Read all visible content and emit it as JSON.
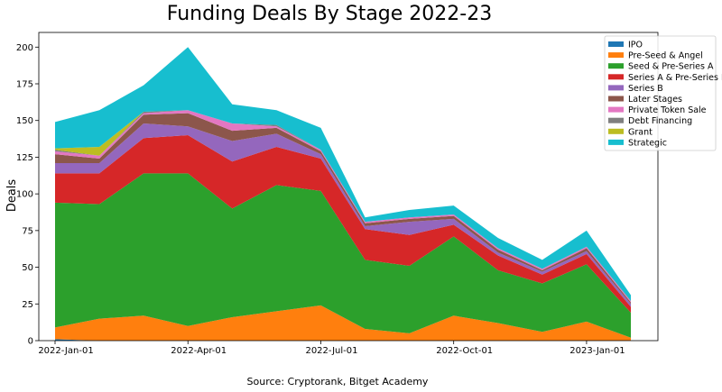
{
  "chart_data": {
    "type": "area",
    "stacked": true,
    "title": "Funding Deals By Stage 2022-23",
    "xlabel": "",
    "ylabel": "Deals",
    "source": "Source: Cryptorank, Bitget Academy",
    "x": [
      "2022-01",
      "2022-02",
      "2022-03",
      "2022-04",
      "2022-05",
      "2022-06",
      "2022-07",
      "2022-08",
      "2022-09",
      "2022-10",
      "2022-11",
      "2022-12",
      "2023-01",
      "2023-02"
    ],
    "xticks": [
      "2022-Jan-01",
      "2022-Apr-01",
      "2022-Jul-01",
      "2022-Oct-01",
      "2023-Jan-01"
    ],
    "xtick_index": [
      0,
      3,
      6,
      9,
      12
    ],
    "ylim": [
      0,
      210
    ],
    "yticks": [
      0,
      25,
      50,
      75,
      100,
      125,
      150,
      175,
      200
    ],
    "legend_position": "top-right",
    "series": [
      {
        "name": "IPO",
        "color": "#1f77b4",
        "values": [
          1,
          0,
          0,
          0,
          0,
          0,
          0,
          0,
          0,
          0,
          0,
          0,
          0,
          0
        ]
      },
      {
        "name": "Pre-Seed & Angel",
        "color": "#ff7f0e",
        "values": [
          8,
          15,
          17,
          10,
          16,
          20,
          24,
          8,
          5,
          17,
          12,
          6,
          13,
          2
        ]
      },
      {
        "name": "Seed & Pre-Series A",
        "color": "#2ca02c",
        "values": [
          85,
          78,
          97,
          104,
          74,
          86,
          78,
          47,
          46,
          54,
          36,
          33,
          39,
          17
        ]
      },
      {
        "name": "Series A & Pre-Series B",
        "color": "#d62728",
        "values": [
          20,
          21,
          24,
          26,
          32,
          26,
          22,
          21,
          21,
          8,
          10,
          6,
          7,
          4
        ]
      },
      {
        "name": "Series B",
        "color": "#9467bd",
        "values": [
          7,
          7,
          10,
          6,
          14,
          9,
          3,
          2,
          9,
          4,
          2,
          2,
          2,
          2
        ]
      },
      {
        "name": "Later Stages",
        "color": "#8c564b",
        "values": [
          6,
          3,
          6,
          9,
          7,
          4,
          2,
          2,
          2,
          2,
          2,
          1,
          2,
          1
        ]
      },
      {
        "name": "Private Token Sale",
        "color": "#e377c2",
        "values": [
          2,
          2,
          1,
          2,
          5,
          1,
          1,
          1,
          1,
          1,
          1,
          1,
          1,
          1
        ]
      },
      {
        "name": "Debt Financing",
        "color": "#7f7f7f",
        "values": [
          1,
          0,
          1,
          0,
          0,
          1,
          0,
          0,
          0,
          0,
          0,
          0,
          0,
          0
        ]
      },
      {
        "name": "Grant",
        "color": "#bcbd22",
        "values": [
          1,
          6,
          0,
          0,
          0,
          0,
          0,
          0,
          0,
          0,
          0,
          0,
          0,
          0
        ]
      },
      {
        "name": "Strategic",
        "color": "#17becf",
        "values": [
          18,
          25,
          18,
          43,
          13,
          10,
          15,
          3,
          5,
          6,
          7,
          6,
          11,
          4
        ]
      }
    ]
  }
}
